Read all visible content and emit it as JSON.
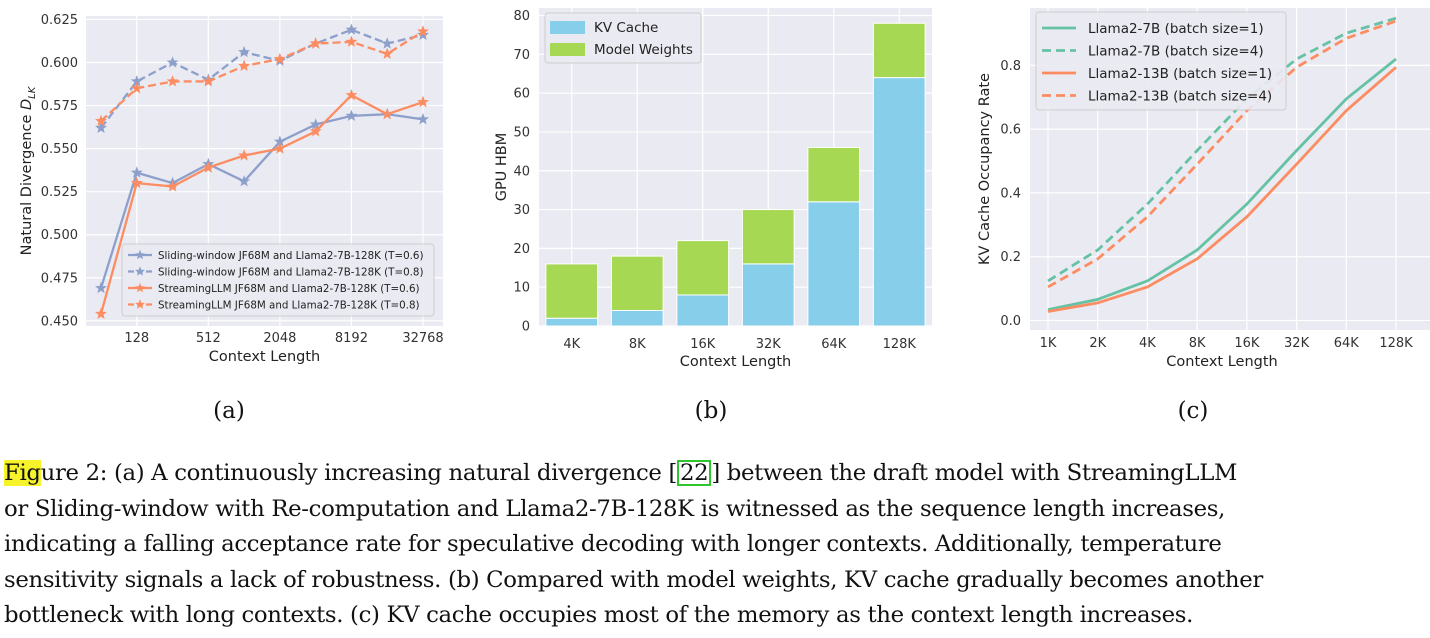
{
  "chart_data": [
    {
      "type": "line",
      "panel": "(a)",
      "xlabel": "Context Length",
      "ylabel": "Natural Divergence D_LK",
      "x_scale": "log2",
      "x_tick_labels": [
        "128",
        "512",
        "2048",
        "8192",
        "32768"
      ],
      "x_tick_values": [
        128,
        512,
        2048,
        8192,
        32768
      ],
      "x": [
        64,
        128,
        256,
        512,
        1024,
        2048,
        4096,
        8192,
        16384,
        32768
      ],
      "y_ticks": [
        "0.450",
        "0.475",
        "0.500",
        "0.525",
        "0.550",
        "0.575",
        "0.600",
        "0.625"
      ],
      "ylim": [
        0.447,
        0.627
      ],
      "legend_position": "lower-right",
      "grid": true,
      "series": [
        {
          "name": "Sliding-window JF68M and Llama2-7B-128K (T=0.6)",
          "color": "#8da0cb",
          "dash": "solid",
          "values": [
            0.469,
            0.536,
            0.53,
            0.541,
            0.531,
            0.554,
            0.564,
            0.569,
            0.57,
            0.567
          ]
        },
        {
          "name": "Sliding-window JF68M and Llama2-7B-128K (T=0.8)",
          "color": "#8da0cb",
          "dash": "dashed",
          "values": [
            0.562,
            0.589,
            0.6,
            0.59,
            0.606,
            0.601,
            0.611,
            0.619,
            0.611,
            0.616
          ]
        },
        {
          "name": "StreamingLLM JF68M and Llama2-7B-128K (T=0.6)",
          "color": "#fc8d62",
          "dash": "solid",
          "values": [
            0.454,
            0.53,
            0.528,
            0.539,
            0.546,
            0.55,
            0.56,
            0.581,
            0.57,
            0.577
          ]
        },
        {
          "name": "StreamingLLM JF68M and Llama2-7B-128K (T=0.8)",
          "color": "#fc8d62",
          "dash": "dashed",
          "values": [
            0.566,
            0.585,
            0.589,
            0.589,
            0.598,
            0.602,
            0.611,
            0.612,
            0.605,
            0.618
          ]
        }
      ]
    },
    {
      "type": "bar",
      "stacked": true,
      "panel": "(b)",
      "xlabel": "Context Length",
      "ylabel": "GPU HBM",
      "categories": [
        "4K",
        "8K",
        "16K",
        "32K",
        "64K",
        "128K"
      ],
      "y_ticks": [
        "0",
        "10",
        "20",
        "30",
        "40",
        "50",
        "60",
        "70",
        "80"
      ],
      "ylim": [
        0,
        80
      ],
      "legend_position": "top-left",
      "grid": true,
      "series": [
        {
          "name": "KV Cache",
          "color": "#87ceeb",
          "values": [
            2,
            4,
            8,
            16,
            32,
            64
          ]
        },
        {
          "name": "Model Weights",
          "color": "#a6d854",
          "values": [
            14,
            14,
            14,
            14,
            14,
            14
          ]
        }
      ]
    },
    {
      "type": "line",
      "panel": "(c)",
      "xlabel": "Context Length",
      "ylabel": "KV Cache Occupancy Rate",
      "categories": [
        "1K",
        "2K",
        "4K",
        "8K",
        "16K",
        "32K",
        "64K",
        "128K"
      ],
      "y_ticks": [
        "0.0",
        "0.2",
        "0.4",
        "0.6",
        "0.8"
      ],
      "ylim": [
        -0.03,
        0.98
      ],
      "legend_position": "top-left",
      "grid": true,
      "series": [
        {
          "name": "Llama2-7B (batch size=1)",
          "color": "#66c2a5",
          "dash": "solid",
          "values": [
            0.034,
            0.066,
            0.124,
            0.221,
            0.365,
            0.533,
            0.695,
            0.82
          ]
        },
        {
          "name": "Llama2-7B (batch size=4)",
          "color": "#66c2a5",
          "dash": "dashed",
          "values": [
            0.124,
            0.221,
            0.365,
            0.533,
            0.695,
            0.82,
            0.901,
            0.948
          ]
        },
        {
          "name": "Llama2-13B (batch size=1)",
          "color": "#fc8d62",
          "dash": "solid",
          "values": [
            0.028,
            0.055,
            0.105,
            0.193,
            0.325,
            0.49,
            0.658,
            0.794
          ]
        },
        {
          "name": "Llama2-13B (batch size=4)",
          "color": "#fc8d62",
          "dash": "dashed",
          "values": [
            0.105,
            0.193,
            0.325,
            0.49,
            0.658,
            0.794,
            0.885,
            0.939
          ]
        }
      ]
    }
  ],
  "panel_labels": [
    "(a)",
    "(b)",
    "(c)"
  ],
  "caption": {
    "fig_prefix": "Fig",
    "fig_rest": "ure 2: (a) A continuously increasing natural divergence [",
    "cite": "22",
    "line1_rest": "] between the draft model with StreamingLLM",
    "line2": "or Sliding-window with Re-computation and Llama2-7B-128K is witnessed as the sequence length increases,",
    "line3": "indicating a falling acceptance rate for speculative decoding with longer contexts. Additionally, temperature",
    "line4": "sensitivity signals a lack of robustness. (b) Compared with model weights, KV cache gradually becomes another",
    "line5": "bottleneck with long contexts. (c) KV cache occupies most of the memory as the context length increases."
  }
}
